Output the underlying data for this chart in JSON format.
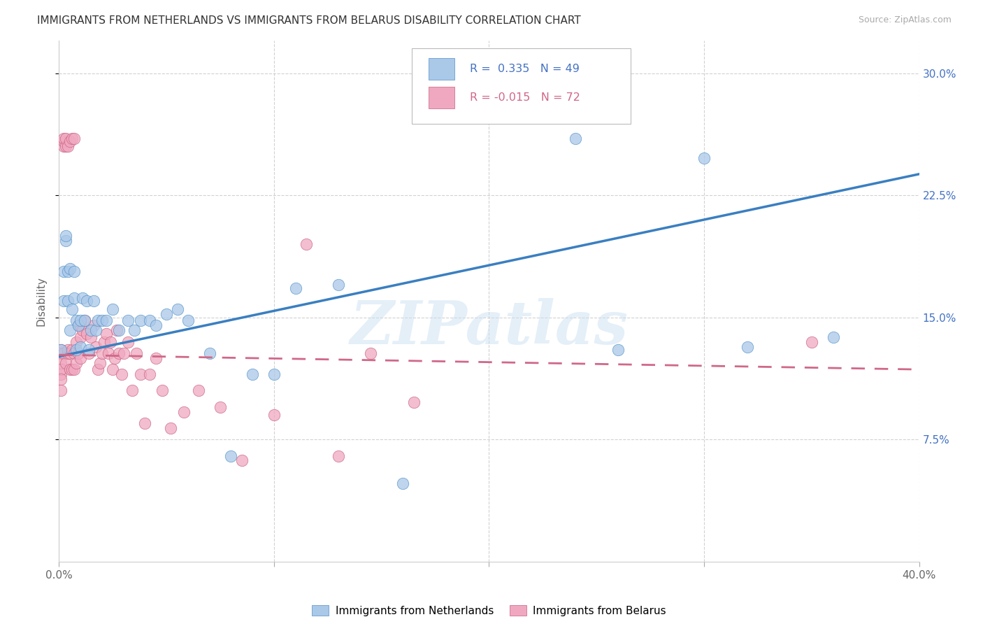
{
  "title": "IMMIGRANTS FROM NETHERLANDS VS IMMIGRANTS FROM BELARUS DISABILITY CORRELATION CHART",
  "source": "Source: ZipAtlas.com",
  "ylabel": "Disability",
  "xlim": [
    0.0,
    0.4
  ],
  "ylim": [
    0.0,
    0.32
  ],
  "xticks": [
    0.0,
    0.1,
    0.2,
    0.3,
    0.4
  ],
  "xticklabels": [
    "0.0%",
    "",
    "",
    "",
    "40.0%"
  ],
  "yticks": [
    0.075,
    0.15,
    0.225,
    0.3
  ],
  "yticklabels": [
    "7.5%",
    "15.0%",
    "22.5%",
    "30.0%"
  ],
  "R_netherlands": 0.335,
  "N_netherlands": 49,
  "R_belarus": -0.015,
  "N_belarus": 72,
  "color_netherlands": "#aac8e8",
  "color_netherlands_edge": "#5090c8",
  "color_netherlands_line": "#3a7fc1",
  "color_belarus": "#f0a8c0",
  "color_belarus_edge": "#c86080",
  "color_belarus_line": "#d06888",
  "watermark": "ZIPatlas",
  "nl_line_x0": 0.0,
  "nl_line_y0": 0.126,
  "nl_line_x1": 0.4,
  "nl_line_y1": 0.238,
  "be_line_x0": 0.0,
  "be_line_y0": 0.127,
  "be_line_x1": 0.4,
  "be_line_y1": 0.118,
  "netherlands_x": [
    0.001,
    0.002,
    0.002,
    0.003,
    0.003,
    0.004,
    0.004,
    0.005,
    0.005,
    0.006,
    0.007,
    0.007,
    0.008,
    0.008,
    0.009,
    0.01,
    0.01,
    0.011,
    0.012,
    0.013,
    0.014,
    0.015,
    0.016,
    0.017,
    0.018,
    0.02,
    0.022,
    0.025,
    0.028,
    0.032,
    0.035,
    0.038,
    0.042,
    0.045,
    0.05,
    0.055,
    0.06,
    0.07,
    0.08,
    0.09,
    0.1,
    0.11,
    0.13,
    0.16,
    0.24,
    0.26,
    0.3,
    0.32,
    0.36
  ],
  "netherlands_y": [
    0.13,
    0.16,
    0.178,
    0.197,
    0.2,
    0.178,
    0.16,
    0.142,
    0.18,
    0.155,
    0.162,
    0.178,
    0.148,
    0.13,
    0.145,
    0.148,
    0.132,
    0.162,
    0.148,
    0.16,
    0.13,
    0.142,
    0.16,
    0.142,
    0.148,
    0.148,
    0.148,
    0.155,
    0.142,
    0.148,
    0.142,
    0.148,
    0.148,
    0.145,
    0.152,
    0.155,
    0.148,
    0.128,
    0.065,
    0.115,
    0.115,
    0.168,
    0.17,
    0.048,
    0.26,
    0.13,
    0.248,
    0.132,
    0.138
  ],
  "belarus_x": [
    0.001,
    0.001,
    0.001,
    0.001,
    0.001,
    0.001,
    0.001,
    0.002,
    0.002,
    0.002,
    0.002,
    0.003,
    0.003,
    0.003,
    0.004,
    0.004,
    0.004,
    0.005,
    0.005,
    0.005,
    0.006,
    0.006,
    0.006,
    0.007,
    0.007,
    0.007,
    0.008,
    0.008,
    0.009,
    0.009,
    0.01,
    0.01,
    0.01,
    0.011,
    0.012,
    0.013,
    0.014,
    0.015,
    0.016,
    0.017,
    0.018,
    0.019,
    0.02,
    0.021,
    0.022,
    0.023,
    0.024,
    0.025,
    0.026,
    0.027,
    0.028,
    0.029,
    0.03,
    0.032,
    0.034,
    0.036,
    0.038,
    0.04,
    0.042,
    0.045,
    0.048,
    0.052,
    0.058,
    0.065,
    0.075,
    0.085,
    0.1,
    0.115,
    0.13,
    0.145,
    0.165,
    0.35
  ],
  "belarus_y": [
    0.13,
    0.128,
    0.122,
    0.115,
    0.118,
    0.112,
    0.105,
    0.255,
    0.258,
    0.26,
    0.128,
    0.255,
    0.26,
    0.122,
    0.128,
    0.255,
    0.13,
    0.258,
    0.128,
    0.118,
    0.26,
    0.118,
    0.13,
    0.26,
    0.128,
    0.118,
    0.135,
    0.122,
    0.145,
    0.128,
    0.138,
    0.145,
    0.125,
    0.142,
    0.148,
    0.14,
    0.128,
    0.138,
    0.145,
    0.132,
    0.118,
    0.122,
    0.128,
    0.135,
    0.14,
    0.128,
    0.135,
    0.118,
    0.125,
    0.142,
    0.128,
    0.115,
    0.128,
    0.135,
    0.105,
    0.128,
    0.115,
    0.085,
    0.115,
    0.125,
    0.105,
    0.082,
    0.092,
    0.105,
    0.095,
    0.062,
    0.09,
    0.195,
    0.065,
    0.128,
    0.098,
    0.135
  ]
}
